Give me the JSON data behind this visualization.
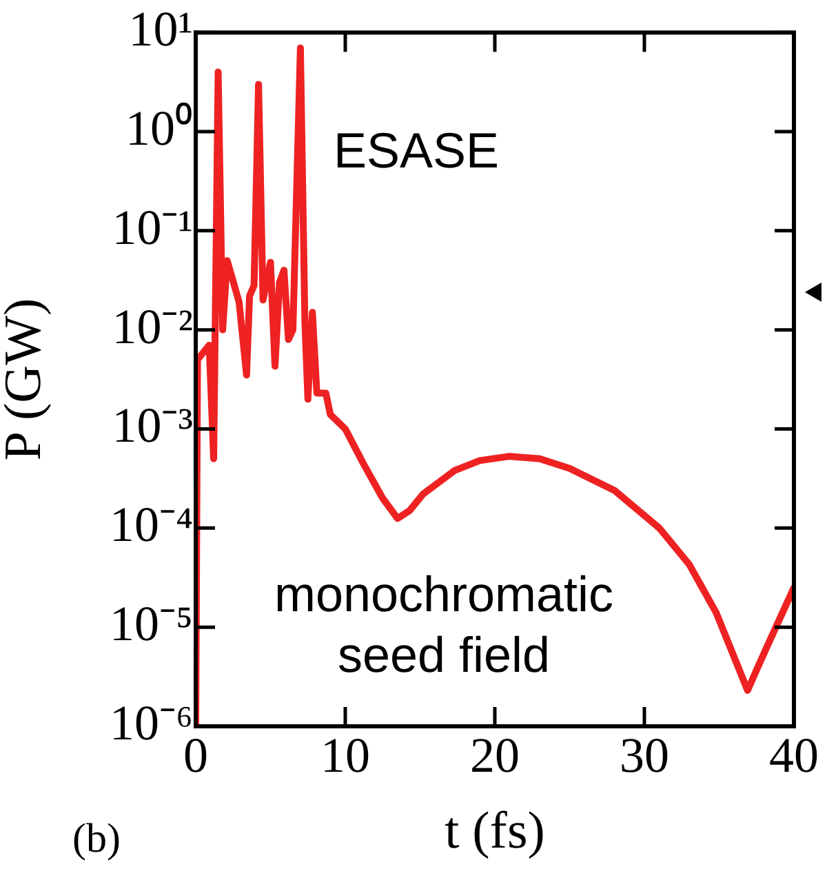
{
  "chart_data": {
    "type": "line",
    "xlabel": "t (fs)",
    "ylabel": "P (GW)",
    "log": "y",
    "annotations": [
      "ESASE",
      "monochromatic seed field",
      "(b)"
    ],
    "xlim": [
      0,
      40
    ],
    "xticks": [
      0,
      10,
      20,
      30,
      40
    ],
    "ylim": [
      1e-06,
      10
    ],
    "yticks": [
      {
        "value": 1e-06,
        "label": "10⁻⁶"
      },
      {
        "value": 1e-05,
        "label": "10⁻⁵"
      },
      {
        "value": 0.0001,
        "label": "10⁻⁴"
      },
      {
        "value": 0.001,
        "label": "10⁻³"
      },
      {
        "value": 0.01,
        "label": "10⁻²"
      },
      {
        "value": 0.1,
        "label": "10⁻¹"
      },
      {
        "value": 1,
        "label": "10⁰"
      },
      {
        "value": 10,
        "label": "10¹"
      }
    ],
    "grid": false,
    "legend": false,
    "marker": "none",
    "line_style": "solid",
    "series": [
      {
        "color": "#ee2222",
        "x": [
          0,
          0.12,
          0.9,
          1.2,
          1.5,
          1.8,
          2.1,
          2.4,
          2.9,
          3.4,
          3.6,
          3.9,
          4.2,
          4.5,
          5.0,
          5.3,
          5.6,
          5.9,
          6.2,
          6.5,
          7.0,
          7.3,
          7.5,
          7.8,
          8.1,
          8.7,
          9,
          10,
          11.2,
          12.5,
          13.5,
          14.3,
          15.2,
          17.3,
          19,
          21,
          23,
          25,
          28,
          31,
          33,
          34.8,
          36,
          36.9,
          37.6,
          38.5,
          40
        ],
        "values": [
          1e-06,
          0.005,
          0.007,
          0.0005,
          4,
          0.01,
          0.05,
          0.035,
          0.019,
          0.0035,
          0.022,
          0.028,
          3,
          0.02,
          0.048,
          0.0043,
          0.03,
          0.04,
          0.008,
          0.01,
          7,
          0.012,
          0.002,
          0.015,
          0.0023,
          0.0023,
          0.0014,
          0.001,
          0.00045,
          0.0002,
          0.000125,
          0.00015,
          0.00022,
          0.00038,
          0.00048,
          0.00053,
          0.0005,
          0.0004,
          0.00024,
          0.0001,
          4.3e-05,
          1.4e-05,
          5e-06,
          2.3e-06,
          4e-06,
          8e-06,
          2.5e-05
        ]
      }
    ]
  }
}
